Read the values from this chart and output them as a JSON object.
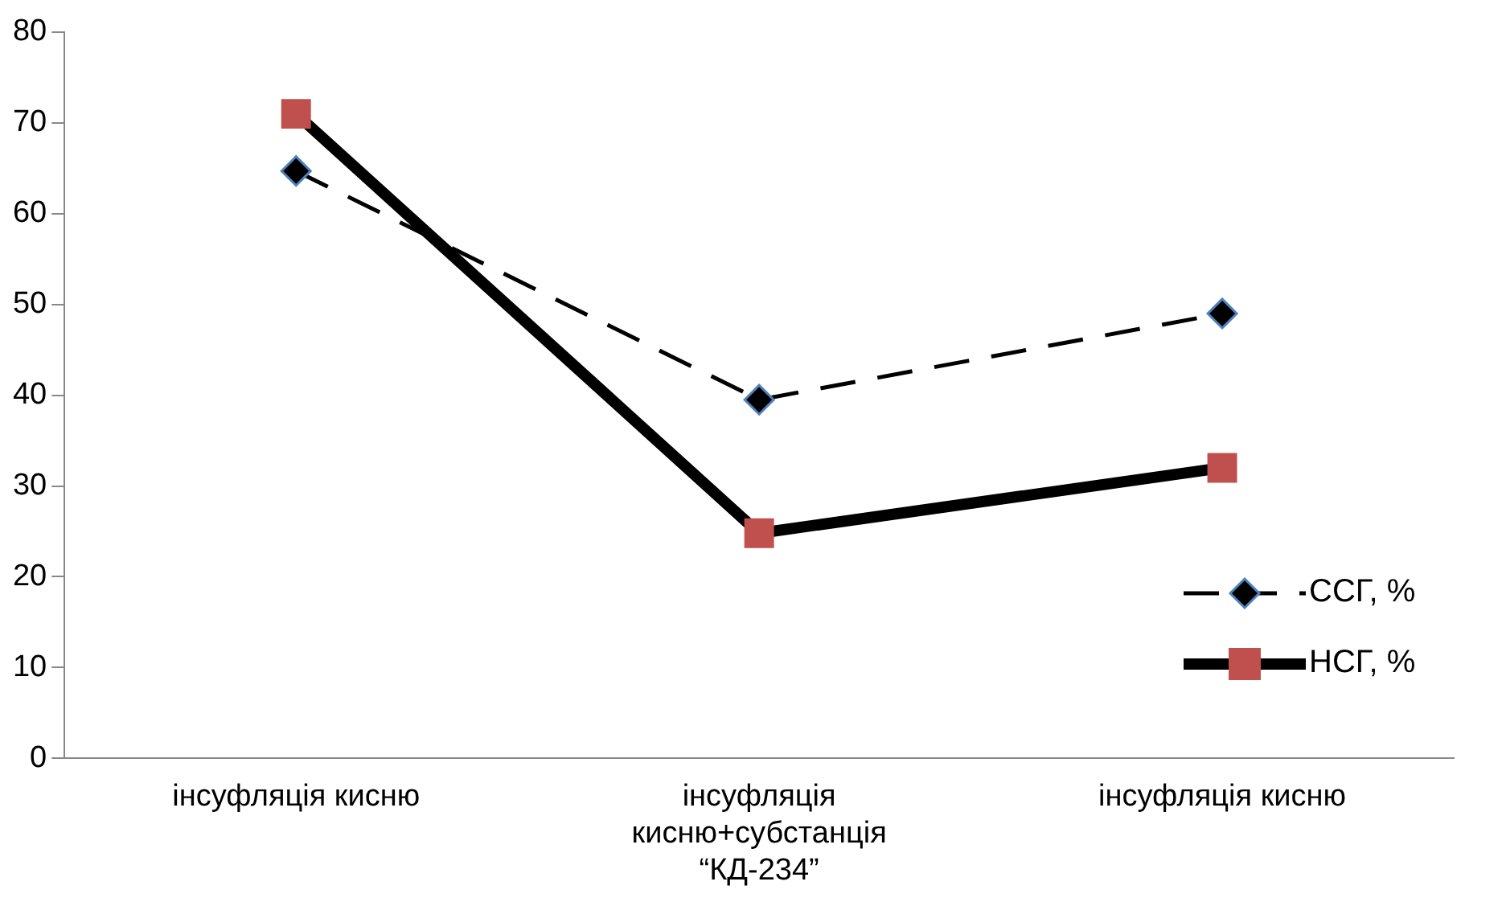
{
  "chart_data": {
    "type": "line",
    "categories": [
      "інсуфляція кисню",
      "інсуфляція кисню+субстанція “КД-234”",
      "інсуфляція кисню"
    ],
    "series": [
      {
        "name": "ССГ, %",
        "color": "#000000",
        "marker": "diamond",
        "line_style": "dashed",
        "values": [
          64.7,
          39.5,
          49
        ]
      },
      {
        "name": "НСГ, %",
        "color": "#c0504d",
        "marker": "square",
        "line_style": "solid",
        "values": [
          71,
          24.8,
          32
        ]
      }
    ],
    "ylim": [
      0,
      80
    ],
    "yticks": [
      0,
      10,
      20,
      30,
      40,
      50,
      60,
      70,
      80
    ],
    "grid": false,
    "legend": "bottom right"
  }
}
